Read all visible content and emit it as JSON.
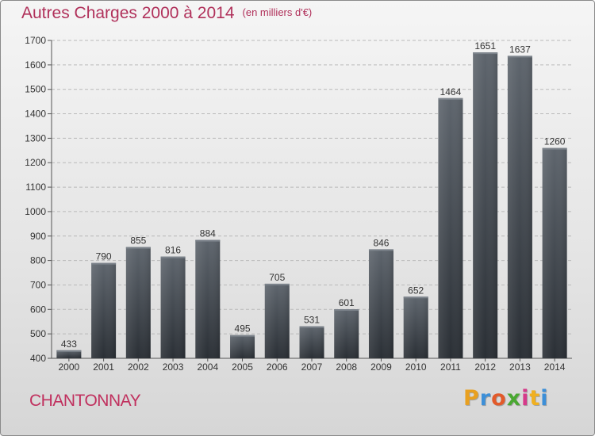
{
  "header": {
    "title": "Autres Charges 2000 à 2014",
    "subtitle": "(en milliers d'€)"
  },
  "footer": {
    "city": "CHANTONNAY",
    "logo_letters": [
      "P",
      "r",
      "o",
      "x",
      "i",
      "t",
      "i"
    ],
    "logo_colors": [
      "#e8a020",
      "#3c8fd8",
      "#e25a2a",
      "#4aa832",
      "#d63a8a",
      "#f0b020",
      "#3c8fd8"
    ]
  },
  "chart_data": {
    "type": "bar",
    "title": "Autres Charges 2000 à 2014",
    "subtitle": "(en milliers d'€)",
    "categories": [
      "2000",
      "2001",
      "2002",
      "2003",
      "2004",
      "2005",
      "2006",
      "2007",
      "2008",
      "2009",
      "2010",
      "2011",
      "2012",
      "2013",
      "2014"
    ],
    "values": [
      433,
      790,
      855,
      816,
      884,
      495,
      705,
      531,
      601,
      846,
      652,
      1464,
      1651,
      1637,
      1260
    ],
    "ylim": [
      400,
      1700
    ],
    "yticks": [
      400,
      500,
      600,
      700,
      800,
      900,
      1000,
      1100,
      1200,
      1300,
      1400,
      1500,
      1600,
      1700
    ],
    "grid": true,
    "data_labels": true,
    "bar_color": "#3f454c"
  }
}
